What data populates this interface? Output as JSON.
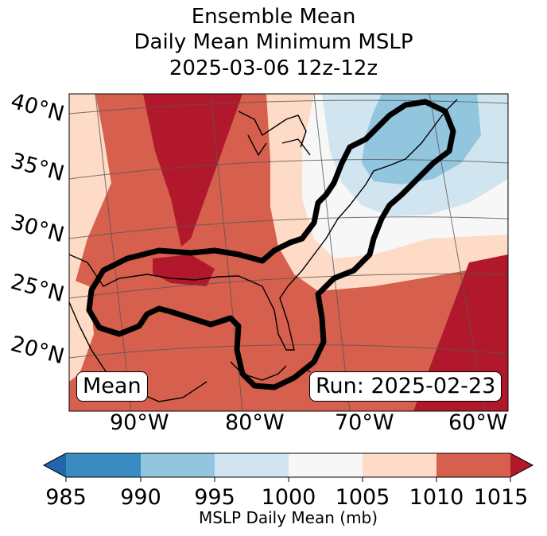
{
  "title": {
    "line1": "Ensemble Mean",
    "line2": "Daily Mean Minimum MSLP",
    "line3": "2025-03-06 12z-12z"
  },
  "map": {
    "lat_labels": [
      "40°N",
      "35°N",
      "30°N",
      "25°N",
      "20°N"
    ],
    "lon_labels": [
      "90°W",
      "80°W",
      "70°W",
      "60°W"
    ],
    "mean_label": "Mean",
    "run_label": "Run: 2025-02-23",
    "contour_color": "#000000"
  },
  "colorbar": {
    "label": "MSLP Daily Mean (mb)",
    "ticks": [
      "985",
      "990",
      "995",
      "1000",
      "1005",
      "1010",
      "1015"
    ],
    "colors": [
      "#2166ac",
      "#3a8bc2",
      "#92c5de",
      "#d1e5f0",
      "#f7f7f7",
      "#fddbc7",
      "#d6604d",
      "#b2182b"
    ]
  }
}
